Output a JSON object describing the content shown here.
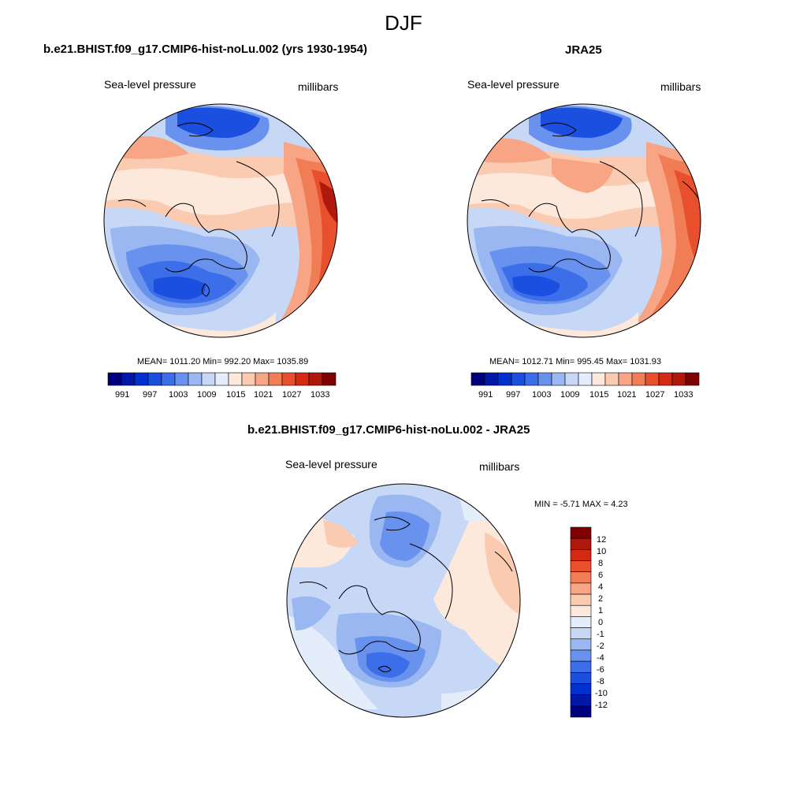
{
  "main_title": "DJF",
  "panels": [
    {
      "title": "b.e21.BHIST.f09_g17.CMIP6-hist-noLu.002 (yrs 1930-1954)",
      "left_label": "Sea-level pressure",
      "right_label": "millibars",
      "stats": "MEAN= 1011.20  Min= 992.20  Max= 1035.89",
      "colorbar_labels": [
        "991",
        "997",
        "1003",
        "1009",
        "1015",
        "1021",
        "1027",
        "1033"
      ]
    },
    {
      "title": "JRA25",
      "left_label": "Sea-level pressure",
      "right_label": "millibars",
      "stats": "MEAN= 1012.71  Min= 995.45  Max= 1031.93",
      "colorbar_labels": [
        "991",
        "997",
        "1003",
        "1009",
        "1015",
        "1021",
        "1027",
        "1033"
      ]
    },
    {
      "title": "b.e21.BHIST.f09_g17.CMIP6-hist-noLu.002 - JRA25",
      "left_label": "Sea-level pressure",
      "right_label": "millibars",
      "stats": "MIN =  -5.71 MAX =   4.23",
      "colorbar_labels": [
        "12",
        "10",
        "8",
        "6",
        "4",
        "2",
        "1",
        "0",
        "-1",
        "-2",
        "-4",
        "-6",
        "-8",
        "-10",
        "-12"
      ]
    }
  ],
  "abs_colors": [
    "#00007f",
    "#0018a8",
    "#0030d0",
    "#1a4fe0",
    "#3b6ee8",
    "#6892ee",
    "#9ab7f2",
    "#c6d8f6",
    "#e4eefb",
    "#fde8dc",
    "#fbcbb1",
    "#f7a584",
    "#f17d57",
    "#e84f2c",
    "#d42a14",
    "#b0180c",
    "#7f0000"
  ],
  "diff_colors": [
    "#7f0000",
    "#b0180c",
    "#d42a14",
    "#e84f2c",
    "#f17d57",
    "#f7a584",
    "#fbcbb1",
    "#fde8dc",
    "#e4eefb",
    "#c6d8f6",
    "#9ab7f2",
    "#6892ee",
    "#3b6ee8",
    "#1a4fe0",
    "#0030d0",
    "#0018a8",
    "#00007f"
  ]
}
